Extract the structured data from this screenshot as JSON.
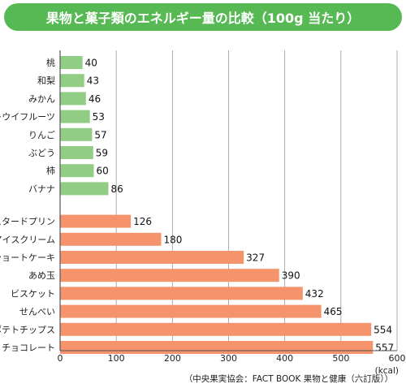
{
  "title": "果物と菓子類のエネルギー量の比較（100g 当たり）",
  "source": "（中央果実協会：FACT BOOK 果物と健康（六訂版））",
  "colors": {
    "title_bg": "#57b953",
    "fruit_bar": "#92cd86",
    "sweets_bar": "#f5936c",
    "grid": "#999999",
    "axis": "#555555"
  },
  "chart_data": {
    "type": "bar",
    "orientation": "horizontal",
    "title": "果物と菓子類のエネルギー量の比較（100g 当たり）",
    "unit": "(kcal)",
    "xlim": [
      0,
      600
    ],
    "ticks": [
      0,
      100,
      200,
      300,
      400,
      500,
      600
    ],
    "grid": true,
    "groups": [
      {
        "color": "#92cd86",
        "categories": [
          "桃",
          "和梨",
          "みかん",
          "キウイフルーツ",
          "りんご",
          "ぶどう",
          "柿",
          "バナナ"
        ],
        "values": [
          40,
          43,
          46,
          53,
          57,
          59,
          60,
          86
        ]
      },
      {
        "color": "#f5936c",
        "categories": [
          "カスタードプリン",
          "アイスクリーム",
          "ショートケーキ",
          "あめ玉",
          "ビスケット",
          "せんべい",
          "ポテトチップス",
          "チョコレート"
        ],
        "values": [
          126,
          180,
          327,
          390,
          432,
          465,
          554,
          557
        ]
      }
    ]
  }
}
